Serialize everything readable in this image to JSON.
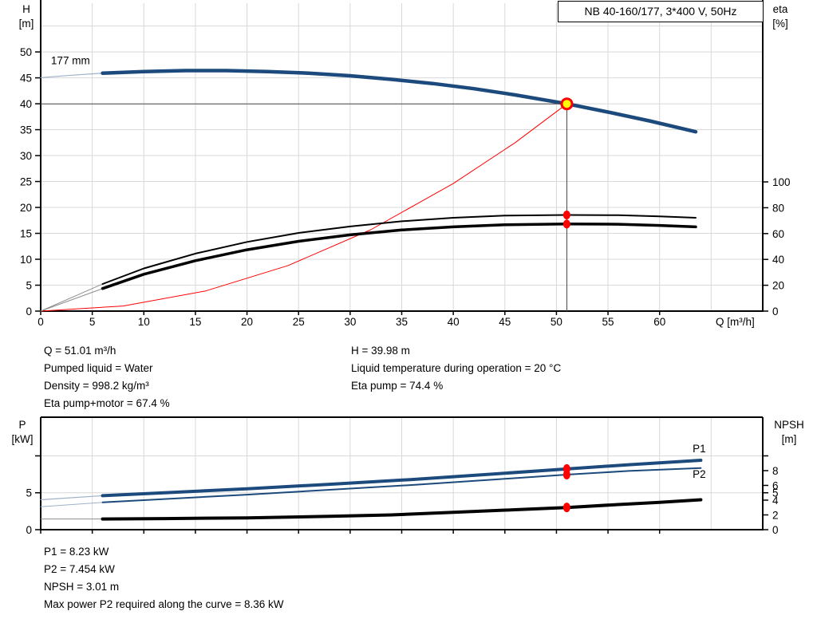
{
  "header": {
    "title_box": "NB 40-160/177, 3*400 V, 50Hz"
  },
  "colors": {
    "curve_blue": "#1c4a7c",
    "label_blue": "#2458a6",
    "black": "#000000",
    "red": "#ff0000",
    "yellow": "#ffff00",
    "grid": "#d8d8d8",
    "guide": "#4a4a4a",
    "ext_gray": "#8c8c8c",
    "ext_blue": "#9db0c8"
  },
  "annotations": {
    "mid_left": [
      "Q = 51.01 m³/h",
      "Pumped liquid = Water",
      "Density = 998.2 kg/m³",
      "Eta pump+motor = 67.4 %"
    ],
    "mid_right": [
      "H = 39.98 m",
      "Liquid temperature during operation = 20 °C",
      "Eta pump = 74.4 %"
    ],
    "bottom": [
      "P1 = 8.23 kW",
      "P2 = 7.454 kW",
      "NPSH = 3.01 m",
      "Max power P2 required along the curve = 8.36 kW"
    ]
  },
  "chart_data": [
    {
      "type": "line",
      "title": "NB 40-160/177, 3*400 V, 50Hz",
      "x_axis": {
        "label": "Q [m³/h]",
        "min": 0,
        "max": 70,
        "ticks": [
          0,
          5,
          10,
          15,
          20,
          25,
          30,
          35,
          40,
          45,
          50,
          55,
          60
        ],
        "grid": [
          5,
          10,
          15,
          20,
          25,
          30,
          35,
          40,
          45,
          50,
          55,
          60,
          65
        ]
      },
      "y_left": {
        "label_lines": [
          "H",
          "[m]"
        ],
        "min": 0,
        "max": 59.4,
        "ticks": [
          0,
          5,
          10,
          15,
          20,
          25,
          30,
          35,
          40,
          45,
          50
        ],
        "grid": [
          5,
          10,
          15,
          20,
          25,
          30,
          35,
          40,
          45,
          50,
          55
        ]
      },
      "y_right": {
        "label_lines": [
          "eta",
          "[%]"
        ],
        "min": 0,
        "max": 238.3,
        "ticks": [
          0,
          20,
          40,
          60,
          80,
          100
        ],
        "grid": []
      },
      "series": [
        {
          "name": "head-curve-ext",
          "axis": "left",
          "color": "ext_blue",
          "w": 1.2,
          "points": [
            [
              0,
              45.05
            ],
            [
              3,
              45.5
            ],
            [
              6,
              45.9
            ]
          ]
        },
        {
          "name": "head-curve",
          "axis": "left",
          "color": "curve_blue",
          "w": 4.5,
          "points": [
            [
              6,
              45.9
            ],
            [
              10,
              46.2
            ],
            [
              14,
              46.4
            ],
            [
              18,
              46.4
            ],
            [
              22,
              46.2
            ],
            [
              26,
              45.9
            ],
            [
              30,
              45.4
            ],
            [
              34,
              44.7
            ],
            [
              38,
              43.9
            ],
            [
              42,
              42.9
            ],
            [
              46,
              41.7
            ],
            [
              51,
              40.0
            ],
            [
              55,
              38.4
            ],
            [
              59,
              36.7
            ],
            [
              63.5,
              34.6
            ]
          ]
        },
        {
          "name": "system-curve",
          "axis": "left",
          "color": "red",
          "w": 1,
          "points": [
            [
              0,
              0
            ],
            [
              8,
              0.98
            ],
            [
              16,
              3.9
            ],
            [
              24,
              8.8
            ],
            [
              32,
              15.7
            ],
            [
              40,
              24.6
            ],
            [
              46,
              32.5
            ],
            [
              51.01,
              39.98
            ]
          ]
        },
        {
          "name": "guide-h",
          "axis": "left",
          "color": "guide",
          "w": 1,
          "points": [
            [
              0,
              39.98
            ],
            [
              51.01,
              39.98
            ]
          ]
        },
        {
          "name": "guide-v",
          "axis": "left",
          "color": "guide",
          "w": 1,
          "points": [
            [
              51.01,
              0
            ],
            [
              51.01,
              39.98
            ]
          ]
        },
        {
          "name": "eta-pump-curve-ext",
          "axis": "right",
          "color": "ext_gray",
          "w": 1,
          "points": [
            [
              0,
              0
            ],
            [
              6,
              21
            ]
          ]
        },
        {
          "name": "eta-pump-motor-curve-ext",
          "axis": "right",
          "color": "ext_gray",
          "w": 1,
          "points": [
            [
              0,
              0
            ],
            [
              6,
              17.5
            ]
          ]
        },
        {
          "name": "eta-pump-curve",
          "axis": "right",
          "color": "black",
          "w": 2,
          "points": [
            [
              6,
              21
            ],
            [
              10,
              33
            ],
            [
              15,
              44.5
            ],
            [
              20,
              53.5
            ],
            [
              25,
              60.5
            ],
            [
              30,
              65.5
            ],
            [
              35,
              69.5
            ],
            [
              40,
              72.2
            ],
            [
              45,
              73.9
            ],
            [
              51,
              74.4
            ],
            [
              56,
              74.2
            ],
            [
              60,
              73.3
            ],
            [
              63.5,
              72.2
            ]
          ]
        },
        {
          "name": "eta-pump-motor-curve",
          "axis": "right",
          "color": "black",
          "w": 3.5,
          "points": [
            [
              6,
              17.5
            ],
            [
              10,
              28.5
            ],
            [
              15,
              39
            ],
            [
              20,
              47.5
            ],
            [
              25,
              54
            ],
            [
              30,
              59
            ],
            [
              35,
              62.8
            ],
            [
              40,
              65.2
            ],
            [
              45,
              66.8
            ],
            [
              51,
              67.4
            ],
            [
              56,
              67.2
            ],
            [
              60,
              66.3
            ],
            [
              63.5,
              65.2
            ]
          ]
        }
      ],
      "markers": [
        {
          "name": "eta-pump-point",
          "axis": "right",
          "x": 51,
          "y": 74.4,
          "rx": 4.5,
          "ry": 5.5,
          "fill": "red"
        },
        {
          "name": "eta-pump-motor-point",
          "axis": "right",
          "x": 51,
          "y": 67.4,
          "rx": 4.5,
          "ry": 5.5,
          "fill": "red"
        },
        {
          "name": "duty-point",
          "axis": "left",
          "x": 51.01,
          "y": 39.98,
          "rx": 6.5,
          "ry": 6.5,
          "fill": "yellow",
          "stroke": "red",
          "sw": 3
        }
      ],
      "labels": [
        {
          "name": "impeller-label",
          "text": "177 mm",
          "axis": "left",
          "x": 1,
          "y": 47.6,
          "color": "black",
          "size": 13.5
        }
      ],
      "duty_point": {
        "Q": 51.01,
        "H": 39.98,
        "eta_pump": 74.4,
        "eta_pump_motor": 67.4
      }
    },
    {
      "type": "line",
      "title": "",
      "x_axis": {
        "label": "",
        "min": 0,
        "max": 70,
        "ticks": [
          0,
          5,
          10,
          15,
          20,
          25,
          30,
          35,
          40,
          45,
          50,
          55,
          60
        ],
        "grid": [
          5,
          10,
          15,
          20,
          25,
          30,
          35,
          40,
          45,
          50,
          55,
          60,
          65
        ]
      },
      "y_left": {
        "label_lines": [
          "P",
          "[kW]"
        ],
        "min": 0,
        "max": 15.24,
        "ticks": [
          {
            "v": 0,
            "l": "0"
          },
          {
            "v": 5,
            "l": "5"
          },
          {
            "v": 10,
            "l": ""
          }
        ],
        "grid": [
          5,
          10
        ]
      },
      "y_right": {
        "label_lines": [
          "NPSH",
          "[m]"
        ],
        "min": 0,
        "max": 15.24,
        "ticks": [
          {
            "v": 0,
            "l": "0"
          },
          {
            "v": 2,
            "l": "2"
          },
          {
            "v": 4,
            "l": "4"
          },
          {
            "v": 5,
            "l": "5"
          },
          {
            "v": 6,
            "l": "6"
          },
          {
            "v": 8,
            "l": "8"
          },
          {
            "v": 10,
            "l": ""
          }
        ],
        "grid": []
      },
      "series": [
        {
          "name": "p1-curve-ext",
          "axis": "left",
          "color": "ext_blue",
          "w": 1.2,
          "points": [
            [
              0,
              4.05
            ],
            [
              6,
              4.6
            ]
          ]
        },
        {
          "name": "p2-curve-ext",
          "axis": "left",
          "color": "ext_blue",
          "w": 1,
          "points": [
            [
              0,
              3.1
            ],
            [
              6,
              3.7
            ]
          ]
        },
        {
          "name": "npsh-curve-ext",
          "axis": "left",
          "color": "ext_gray",
          "w": 1,
          "points": [
            [
              0,
              1.45
            ],
            [
              6,
              1.45
            ]
          ]
        },
        {
          "name": "p1-curve",
          "axis": "left",
          "color": "curve_blue",
          "w": 4,
          "points": [
            [
              6,
              4.6
            ],
            [
              12,
              5.0
            ],
            [
              20,
              5.55
            ],
            [
              28,
              6.15
            ],
            [
              36,
              6.8
            ],
            [
              44,
              7.55
            ],
            [
              51,
              8.23
            ],
            [
              57,
              8.8
            ],
            [
              64,
              9.4
            ]
          ]
        },
        {
          "name": "p2-curve",
          "axis": "left",
          "color": "curve_blue",
          "w": 2,
          "points": [
            [
              6,
              3.7
            ],
            [
              12,
              4.15
            ],
            [
              20,
              4.75
            ],
            [
              28,
              5.4
            ],
            [
              36,
              6.05
            ],
            [
              44,
              6.8
            ],
            [
              51,
              7.454
            ],
            [
              57,
              7.95
            ],
            [
              64,
              8.36
            ]
          ]
        },
        {
          "name": "npsh-curve",
          "axis": "left",
          "color": "black",
          "w": 4,
          "points": [
            [
              6,
              1.45
            ],
            [
              12,
              1.5
            ],
            [
              20,
              1.6
            ],
            [
              28,
              1.8
            ],
            [
              34,
              2.0
            ],
            [
              40,
              2.35
            ],
            [
              46,
              2.7
            ],
            [
              51,
              3.01
            ],
            [
              56,
              3.4
            ],
            [
              60,
              3.7
            ],
            [
              64,
              4.05
            ]
          ]
        }
      ],
      "markers": [
        {
          "name": "p1-point",
          "axis": "left",
          "x": 51,
          "y": 8.23,
          "rx": 4.5,
          "ry": 6,
          "fill": "red"
        },
        {
          "name": "p2-point",
          "axis": "left",
          "x": 51,
          "y": 7.454,
          "rx": 4.5,
          "ry": 6,
          "fill": "red"
        },
        {
          "name": "npsh-point",
          "axis": "left",
          "x": 51,
          "y": 3.01,
          "rx": 4.5,
          "ry": 6,
          "fill": "red"
        }
      ],
      "labels": [
        {
          "name": "p1-label",
          "text": "P1",
          "axis": "left",
          "x": 63.2,
          "y": 10.5,
          "color": "label_blue",
          "size": 14.5
        },
        {
          "name": "p2-label",
          "text": "P2",
          "axis": "left",
          "x": 63.2,
          "y": 7.0,
          "color": "label_blue",
          "size": 14.5
        }
      ],
      "duty_point": {
        "Q": 51.01,
        "P1_kW": 8.23,
        "P2_kW": 7.454,
        "NPSH_m": 3.01
      }
    }
  ]
}
